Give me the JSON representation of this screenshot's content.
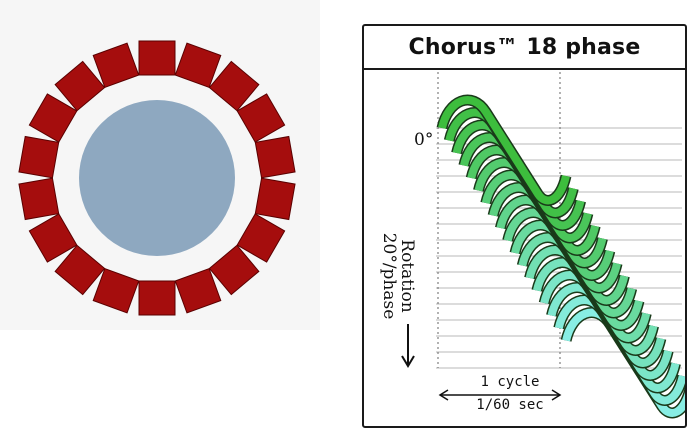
{
  "stator": {
    "slot_count": 18,
    "slot_color": "#a50d0d",
    "slot_border": "#5a0000",
    "rotor_color": "#8ea8c0",
    "background": "#f6f6f6"
  },
  "phase_panel": {
    "title": "Chorus™ 18 phase",
    "angle_label": "0°",
    "rotation_label": "Rotation",
    "step_label": "20°/phase",
    "cycle_label": "1 cycle",
    "period_label": "1/60 sec",
    "phase_count": 18,
    "gradient_start": "#3dbd3d",
    "gradient_end": "#88eee4",
    "grid_color": "#b8b8b8"
  }
}
